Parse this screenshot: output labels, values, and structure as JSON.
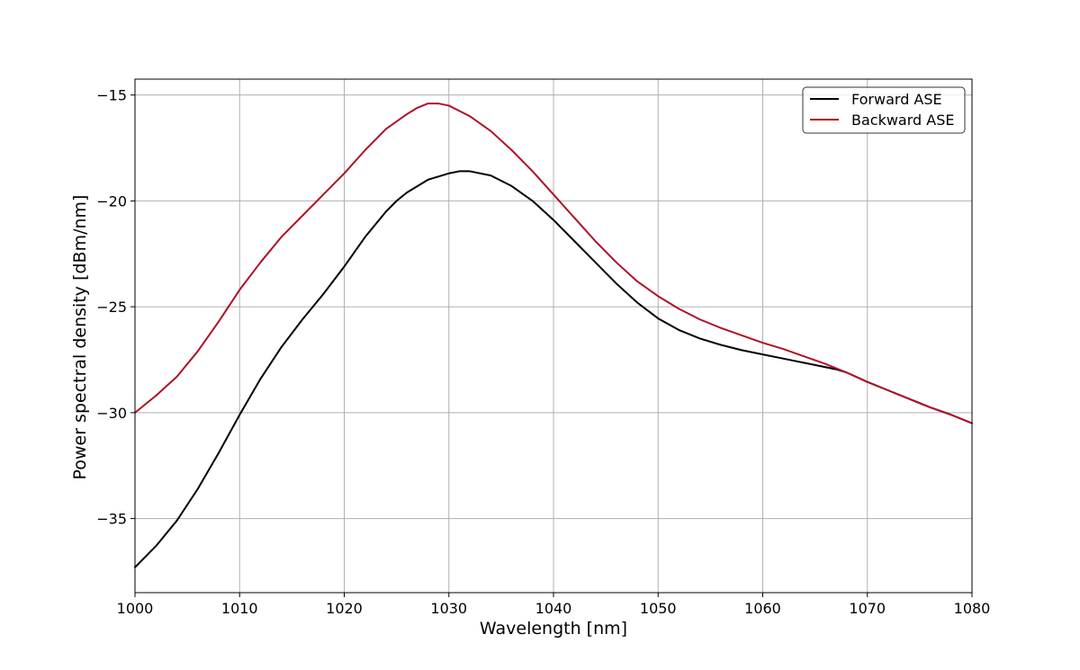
{
  "chart_data": {
    "type": "line",
    "title": "",
    "xlabel": "Wavelength [nm]",
    "ylabel": "Power spectral density [dBm/nm]",
    "xlim": [
      1000,
      1080
    ],
    "ylim": [
      -38.5,
      -14.25
    ],
    "xticks": [
      1000,
      1010,
      1020,
      1030,
      1040,
      1050,
      1060,
      1070,
      1080
    ],
    "xtick_labels": [
      "1000",
      "1010",
      "1020",
      "1030",
      "1040",
      "1050",
      "1060",
      "1070",
      "1080"
    ],
    "yticks": [
      -35,
      -30,
      -25,
      -20,
      -15
    ],
    "ytick_labels": [
      "−35",
      "−30",
      "−25",
      "−20",
      "−15"
    ],
    "grid": true,
    "legend_position": "top-right",
    "series": [
      {
        "name": "Forward ASE",
        "color": "#000000",
        "x": [
          1000,
          1002,
          1004,
          1006,
          1008,
          1010,
          1012,
          1014,
          1016,
          1018,
          1020,
          1022,
          1024,
          1025,
          1026,
          1028,
          1030,
          1031,
          1032,
          1034,
          1036,
          1038,
          1040,
          1042,
          1044,
          1046,
          1048,
          1050,
          1052,
          1054,
          1056,
          1058,
          1060,
          1062,
          1064,
          1066,
          1067,
          1068,
          1070,
          1072,
          1074,
          1076,
          1078,
          1080
        ],
        "y": [
          -37.3,
          -36.3,
          -35.1,
          -33.6,
          -31.9,
          -30.1,
          -28.4,
          -26.9,
          -25.6,
          -24.4,
          -23.1,
          -21.7,
          -20.5,
          -20.0,
          -19.6,
          -19.0,
          -18.7,
          -18.6,
          -18.6,
          -18.8,
          -19.3,
          -20.0,
          -20.9,
          -21.9,
          -22.9,
          -23.9,
          -24.8,
          -25.55,
          -26.1,
          -26.5,
          -26.8,
          -27.05,
          -27.25,
          -27.45,
          -27.65,
          -27.85,
          -27.95,
          -28.1,
          -28.55,
          -28.95,
          -29.35,
          -29.75,
          -30.1,
          -30.5
        ]
      },
      {
        "name": "Backward ASE",
        "color": "#b0102a",
        "x": [
          1000,
          1002,
          1004,
          1006,
          1008,
          1010,
          1012,
          1014,
          1016,
          1018,
          1020,
          1022,
          1024,
          1026,
          1027,
          1028,
          1029,
          1030,
          1032,
          1034,
          1036,
          1038,
          1040,
          1042,
          1044,
          1046,
          1048,
          1050,
          1052,
          1054,
          1056,
          1058,
          1060,
          1062,
          1064,
          1066,
          1067,
          1068,
          1070,
          1072,
          1074,
          1076,
          1078,
          1080
        ],
        "y": [
          -30.0,
          -29.2,
          -28.3,
          -27.1,
          -25.7,
          -24.2,
          -22.9,
          -21.7,
          -20.7,
          -19.7,
          -18.7,
          -17.6,
          -16.6,
          -15.9,
          -15.6,
          -15.4,
          -15.4,
          -15.5,
          -16.0,
          -16.7,
          -17.6,
          -18.6,
          -19.7,
          -20.8,
          -21.9,
          -22.9,
          -23.8,
          -24.5,
          -25.1,
          -25.6,
          -26.0,
          -26.35,
          -26.7,
          -27.0,
          -27.35,
          -27.7,
          -27.9,
          -28.1,
          -28.55,
          -28.95,
          -29.35,
          -29.75,
          -30.1,
          -30.5
        ]
      }
    ]
  }
}
